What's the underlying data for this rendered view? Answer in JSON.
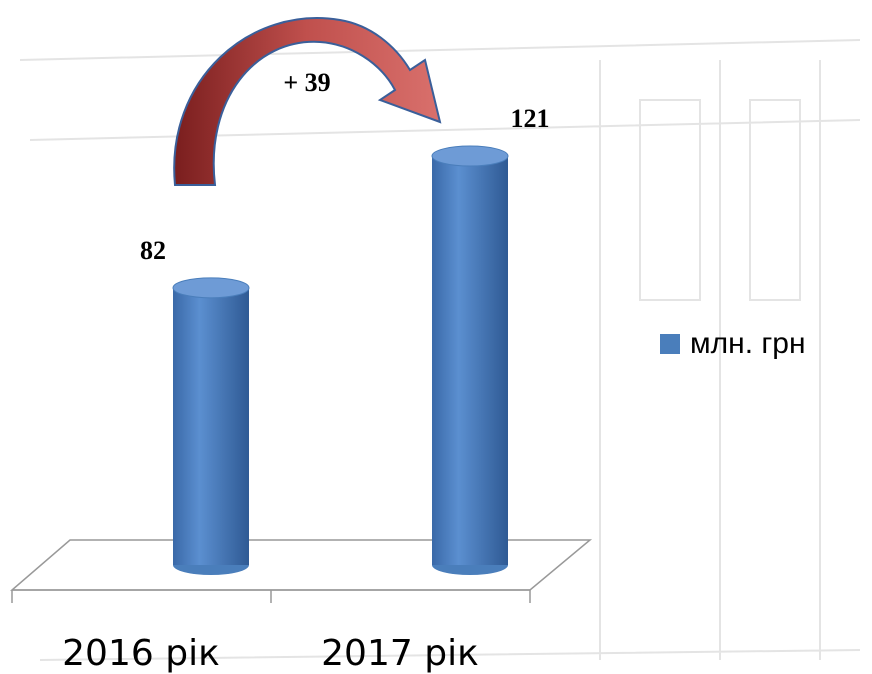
{
  "chart_data": {
    "type": "bar",
    "categories": [
      "2016 рік",
      "2017 рік"
    ],
    "series": [
      {
        "name": "млн. грн",
        "color": "#4a7ebb",
        "values": [
          82,
          121
        ]
      }
    ],
    "annotation": "+ 39",
    "legend": "right"
  }
}
